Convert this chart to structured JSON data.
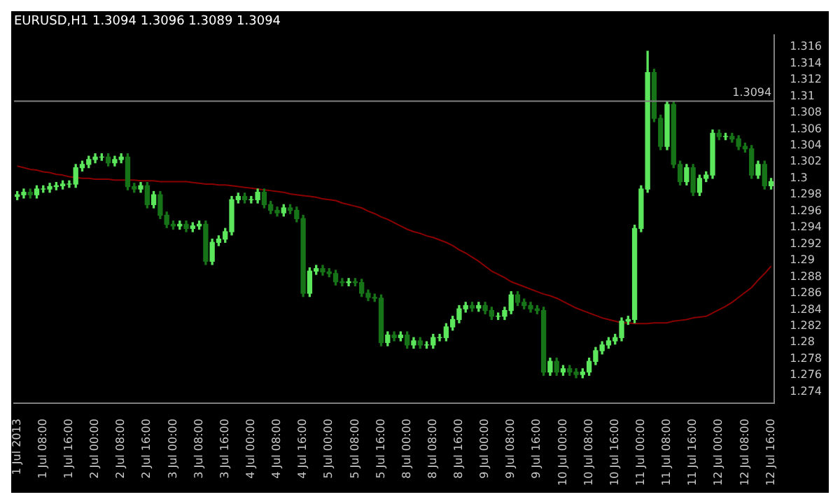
{
  "chart_data": {
    "type": "candlestick",
    "title": "EURUSD,H1 1.3094 1.3096 1.3089 1.3094",
    "categories": [
      "1 Jul 2013",
      null,
      null,
      null,
      "1 Jul 08:00",
      null,
      null,
      null,
      "1 Jul 16:00",
      null,
      null,
      null,
      "2 Jul 00:00",
      null,
      null,
      null,
      "2 Jul 08:00",
      null,
      null,
      null,
      "2 Jul 16:00",
      null,
      null,
      null,
      "3 Jul 00:00",
      null,
      null,
      null,
      "3 Jul 08:00",
      null,
      null,
      null,
      "3 Jul 16:00",
      null,
      null,
      null,
      "4 Jul 00:00",
      null,
      null,
      null,
      "4 Jul 08:00",
      null,
      null,
      null,
      "4 Jul 16:00",
      null,
      null,
      null,
      "5 Jul 00:00",
      null,
      null,
      null,
      "5 Jul 08:00",
      null,
      null,
      null,
      "5 Jul 16:00",
      null,
      null,
      null,
      "8 Jul 00:00",
      null,
      null,
      null,
      "8 Jul 08:00",
      null,
      null,
      null,
      "8 Jul 16:00",
      null,
      null,
      null,
      "9 Jul 00:00",
      null,
      null,
      null,
      "9 Jul 08:00",
      null,
      null,
      null,
      "9 Jul 16:00",
      null,
      null,
      null,
      "10 Jul 00:00",
      null,
      null,
      null,
      "10 Jul 08:00",
      null,
      null,
      null,
      "10 Jul 16:00",
      null,
      null,
      null,
      "11 Jul 00:00",
      null,
      null,
      null,
      "11 Jul 08:00",
      null,
      null,
      null,
      "11 Jul 16:00",
      null,
      null,
      null,
      "12 Jul 00:00",
      null,
      null,
      null,
      "12 Jul 08:00",
      null,
      null,
      null,
      "12 Jul 16:00"
    ],
    "ohlc": [
      [
        1.2978,
        1.2984,
        1.2974,
        1.298
      ],
      [
        1.298,
        1.2987,
        1.2976,
        1.2983
      ],
      [
        1.2983,
        1.2987,
        1.2976,
        1.298
      ],
      [
        1.298,
        1.2991,
        1.2976,
        1.2987
      ],
      [
        1.2987,
        1.2991,
        1.2983,
        1.2987
      ],
      [
        1.2987,
        1.2994,
        1.2983,
        1.299
      ],
      [
        1.299,
        1.2995,
        1.2986,
        1.2991
      ],
      [
        1.2991,
        1.2997,
        1.2987,
        1.2993
      ],
      [
        1.2993,
        1.2997,
        1.2989,
        1.2993
      ],
      [
        1.2993,
        1.3017,
        1.2989,
        1.3013
      ],
      [
        1.3013,
        1.3021,
        1.3009,
        1.3017
      ],
      [
        1.3017,
        1.3027,
        1.3013,
        1.3023
      ],
      [
        1.3023,
        1.303,
        1.3019,
        1.3026
      ],
      [
        1.3026,
        1.303,
        1.3022,
        1.3026
      ],
      [
        1.3026,
        1.303,
        1.3015,
        1.3019
      ],
      [
        1.3019,
        1.3027,
        1.3015,
        1.3023
      ],
      [
        1.3023,
        1.303,
        1.3019,
        1.3026
      ],
      [
        1.3026,
        1.303,
        1.2986,
        1.299
      ],
      [
        1.299,
        1.2994,
        1.2983,
        1.2987
      ],
      [
        1.2987,
        1.2995,
        1.2983,
        1.2991
      ],
      [
        1.2991,
        1.2995,
        1.2964,
        1.2968
      ],
      [
        1.2968,
        1.2984,
        1.2964,
        1.298
      ],
      [
        1.298,
        1.2984,
        1.2951,
        1.2955
      ],
      [
        1.2955,
        1.2959,
        1.294,
        1.2944
      ],
      [
        1.2944,
        1.2948,
        1.2938,
        1.2942
      ],
      [
        1.2942,
        1.2948,
        1.2938,
        1.2944
      ],
      [
        1.2944,
        1.2948,
        1.2935,
        1.2939
      ],
      [
        1.2939,
        1.2946,
        1.2935,
        1.2942
      ],
      [
        1.2942,
        1.2948,
        1.2938,
        1.2944
      ],
      [
        1.2944,
        1.2948,
        1.2895,
        1.2899
      ],
      [
        1.2899,
        1.2926,
        1.2895,
        1.2922
      ],
      [
        1.2922,
        1.293,
        1.2918,
        1.2926
      ],
      [
        1.2926,
        1.2939,
        1.2922,
        1.2935
      ],
      [
        1.2935,
        1.2978,
        1.2931,
        1.2974
      ],
      [
        1.2974,
        1.2982,
        1.297,
        1.2978
      ],
      [
        1.2978,
        1.2982,
        1.297,
        1.2974
      ],
      [
        1.2974,
        1.2978,
        1.297,
        1.2974
      ],
      [
        1.2974,
        1.2987,
        1.297,
        1.2983
      ],
      [
        1.2983,
        1.2987,
        1.2964,
        1.2968
      ],
      [
        1.2968,
        1.2972,
        1.2957,
        1.2961
      ],
      [
        1.2961,
        1.2965,
        1.2954,
        1.2958
      ],
      [
        1.2958,
        1.2968,
        1.2954,
        1.2964
      ],
      [
        1.2964,
        1.2968,
        1.2957,
        1.2961
      ],
      [
        1.2961,
        1.2965,
        1.2947,
        1.2951
      ],
      [
        1.2951,
        1.2955,
        1.2856,
        1.286
      ],
      [
        1.286,
        1.2891,
        1.2856,
        1.2887
      ],
      [
        1.2887,
        1.2894,
        1.2883,
        1.289
      ],
      [
        1.289,
        1.2894,
        1.2882,
        1.2886
      ],
      [
        1.2886,
        1.289,
        1.288,
        1.2884
      ],
      [
        1.2884,
        1.2888,
        1.287,
        1.2874
      ],
      [
        1.2874,
        1.2878,
        1.2869,
        1.2873
      ],
      [
        1.2873,
        1.2878,
        1.2869,
        1.2874
      ],
      [
        1.2874,
        1.2878,
        1.2869,
        1.2873
      ],
      [
        1.2873,
        1.2877,
        1.2856,
        1.286
      ],
      [
        1.286,
        1.2864,
        1.2851,
        1.2855
      ],
      [
        1.2855,
        1.2859,
        1.285,
        1.2854
      ],
      [
        1.2854,
        1.2858,
        1.2796,
        1.28
      ],
      [
        1.28,
        1.2813,
        1.2796,
        1.2809
      ],
      [
        1.2809,
        1.2813,
        1.2802,
        1.2806
      ],
      [
        1.2806,
        1.2813,
        1.2802,
        1.2809
      ],
      [
        1.2809,
        1.2813,
        1.2793,
        1.2797
      ],
      [
        1.2797,
        1.2806,
        1.2793,
        1.2802
      ],
      [
        1.2802,
        1.2806,
        1.2793,
        1.2797
      ],
      [
        1.2797,
        1.2801,
        1.2793,
        1.2797
      ],
      [
        1.2797,
        1.281,
        1.2793,
        1.2806
      ],
      [
        1.2806,
        1.281,
        1.2802,
        1.2806
      ],
      [
        1.2806,
        1.2823,
        1.2802,
        1.2819
      ],
      [
        1.2819,
        1.2832,
        1.2815,
        1.2828
      ],
      [
        1.2828,
        1.2845,
        1.2824,
        1.2841
      ],
      [
        1.2841,
        1.2849,
        1.2837,
        1.2845
      ],
      [
        1.2845,
        1.2849,
        1.2838,
        1.2842
      ],
      [
        1.2842,
        1.2849,
        1.2838,
        1.2845
      ],
      [
        1.2845,
        1.2849,
        1.2835,
        1.2839
      ],
      [
        1.2839,
        1.2843,
        1.2828,
        1.2832
      ],
      [
        1.2832,
        1.2836,
        1.2828,
        1.2832
      ],
      [
        1.2832,
        1.2843,
        1.2828,
        1.2839
      ],
      [
        1.2839,
        1.2862,
        1.2835,
        1.2858
      ],
      [
        1.2858,
        1.2862,
        1.2845,
        1.2849
      ],
      [
        1.2849,
        1.2853,
        1.2841,
        1.2845
      ],
      [
        1.2845,
        1.2849,
        1.2837,
        1.2841
      ],
      [
        1.2841,
        1.2845,
        1.2835,
        1.2839
      ],
      [
        1.2839,
        1.2843,
        1.276,
        1.2764
      ],
      [
        1.2764,
        1.2781,
        1.276,
        1.2777
      ],
      [
        1.2777,
        1.2781,
        1.276,
        1.2764
      ],
      [
        1.2764,
        1.2772,
        1.276,
        1.2768
      ],
      [
        1.2768,
        1.2772,
        1.276,
        1.2764
      ],
      [
        1.2764,
        1.2768,
        1.2757,
        1.2761
      ],
      [
        1.2761,
        1.2768,
        1.2757,
        1.2764
      ],
      [
        1.2764,
        1.2781,
        1.276,
        1.2777
      ],
      [
        1.2777,
        1.2794,
        1.2773,
        1.279
      ],
      [
        1.279,
        1.2801,
        1.2786,
        1.2797
      ],
      [
        1.2797,
        1.2806,
        1.2793,
        1.2802
      ],
      [
        1.2802,
        1.281,
        1.2798,
        1.2806
      ],
      [
        1.2806,
        1.283,
        1.2802,
        1.2826
      ],
      [
        1.2826,
        1.2832,
        1.2822,
        1.2828
      ],
      [
        1.2828,
        1.2943,
        1.2824,
        1.2939
      ],
      [
        1.2939,
        1.2991,
        1.2935,
        1.2987
      ],
      [
        1.2987,
        1.3155,
        1.2983,
        1.3129
      ],
      [
        1.3129,
        1.3133,
        1.3069,
        1.3073
      ],
      [
        1.3073,
        1.3077,
        1.3035,
        1.3039
      ],
      [
        1.3039,
        1.3094,
        1.3035,
        1.309
      ],
      [
        1.309,
        1.3094,
        1.3013,
        1.3017
      ],
      [
        1.3017,
        1.3021,
        1.2992,
        1.2996
      ],
      [
        1.2996,
        1.3017,
        1.2992,
        1.3013
      ],
      [
        1.3013,
        1.3017,
        1.2979,
        1.2983
      ],
      [
        1.2983,
        1.3004,
        1.2979,
        1.3
      ],
      [
        1.3,
        1.3008,
        1.2996,
        1.3004
      ],
      [
        1.3004,
        1.3059,
        1.3,
        1.3055
      ],
      [
        1.3055,
        1.3059,
        1.3047,
        1.3051
      ],
      [
        1.3051,
        1.3055,
        1.3047,
        1.3051
      ],
      [
        1.3051,
        1.3055,
        1.3044,
        1.3048
      ],
      [
        1.3048,
        1.3052,
        1.3035,
        1.3039
      ],
      [
        1.3039,
        1.3043,
        1.3032,
        1.3036
      ],
      [
        1.3036,
        1.304,
        1.3,
        1.3004
      ],
      [
        1.3004,
        1.3021,
        1.3,
        1.3017
      ],
      [
        1.3017,
        1.3021,
        1.2987,
        1.2991
      ],
      [
        1.2991,
        1.3,
        1.2987,
        1.2996
      ]
    ],
    "colors": [
      "#5ce65c",
      "#5ce65c",
      "#177317",
      "#5ce65c",
      "#5ce65c",
      "#5ce65c",
      "#5ce65c",
      "#5ce65c",
      "#5ce65c",
      "#5ce65c",
      "#5ce65c",
      "#5ce65c",
      "#5ce65c",
      "#5ce65c",
      "#177317",
      "#5ce65c",
      "#5ce65c",
      "#177317",
      "#177317",
      "#5ce65c",
      "#177317",
      "#5ce65c",
      "#177317",
      "#177317",
      "#177317",
      "#5ce65c",
      "#177317",
      "#5ce65c",
      "#5ce65c",
      "#177317",
      "#5ce65c",
      "#5ce65c",
      "#5ce65c",
      "#5ce65c",
      "#5ce65c",
      "#177317",
      "#5ce65c",
      "#5ce65c",
      "#177317",
      "#177317",
      "#177317",
      "#5ce65c",
      "#177317",
      "#177317",
      "#177317",
      "#5ce65c",
      "#5ce65c",
      "#177317",
      "#177317",
      "#177317",
      "#177317",
      "#5ce65c",
      "#177317",
      "#177317",
      "#177317",
      "#177317",
      "#177317",
      "#5ce65c",
      "#177317",
      "#5ce65c",
      "#177317",
      "#5ce65c",
      "#177317",
      "#5ce65c",
      "#5ce65c",
      "#5ce65c",
      "#5ce65c",
      "#5ce65c",
      "#5ce65c",
      "#5ce65c",
      "#177317",
      "#5ce65c",
      "#177317",
      "#177317",
      "#5ce65c",
      "#5ce65c",
      "#5ce65c",
      "#177317",
      "#177317",
      "#177317",
      "#177317",
      "#177317",
      "#5ce65c",
      "#177317",
      "#5ce65c",
      "#177317",
      "#177317",
      "#5ce65c",
      "#5ce65c",
      "#5ce65c",
      "#5ce65c",
      "#5ce65c",
      "#5ce65c",
      "#5ce65c",
      "#5ce65c",
      "#5ce65c",
      "#5ce65c",
      "#5ce65c",
      "#177317",
      "#177317",
      "#5ce65c",
      "#177317",
      "#177317",
      "#5ce65c",
      "#177317",
      "#5ce65c",
      "#5ce65c",
      "#5ce65c",
      "#177317",
      "#5ce65c",
      "#177317",
      "#177317",
      "#177317",
      "#177317",
      "#5ce65c",
      "#177317",
      "#5ce65c"
    ],
    "series": [
      {
        "type": "line",
        "color": "#8b0000",
        "values": [
          1.3015,
          1.3013,
          1.3011,
          1.301,
          1.3008,
          1.3007,
          1.3005,
          1.3004,
          1.3002,
          1.3001,
          1.3,
          1.3,
          1.2999,
          1.2999,
          1.2999,
          1.2998,
          1.2998,
          1.2998,
          1.2998,
          1.2997,
          1.2997,
          1.2997,
          1.2996,
          1.2996,
          1.2996,
          1.2996,
          1.2996,
          1.2995,
          1.2994,
          1.2993,
          1.2993,
          1.2992,
          1.2992,
          1.2991,
          1.299,
          1.2989,
          1.2988,
          1.2987,
          1.2986,
          1.2985,
          1.2984,
          1.2983,
          1.2981,
          1.298,
          1.2979,
          1.2978,
          1.2977,
          1.2975,
          1.2974,
          1.2973,
          1.297,
          1.2968,
          1.2966,
          1.2964,
          1.296,
          1.2957,
          1.2953,
          1.295,
          1.2946,
          1.2942,
          1.2938,
          1.2935,
          1.2933,
          1.293,
          1.2928,
          1.2925,
          1.2922,
          1.2918,
          1.2913,
          1.2909,
          1.2904,
          1.2899,
          1.2893,
          1.2887,
          1.2883,
          1.2879,
          1.2874,
          1.2871,
          1.2868,
          1.2865,
          1.2862,
          1.2859,
          1.2857,
          1.2854,
          1.285,
          1.2846,
          1.2842,
          1.2839,
          1.2836,
          1.2833,
          1.283,
          1.2828,
          1.2826,
          1.2824,
          1.2824,
          1.2823,
          1.2823,
          1.2823,
          1.2824,
          1.2824,
          1.2824,
          1.2826,
          1.2827,
          1.2828,
          1.283,
          1.2831,
          1.2832,
          1.2836,
          1.284,
          1.2844,
          1.2849,
          1.2855,
          1.2861,
          1.2867,
          1.2876,
          1.2884,
          1.2893
        ]
      }
    ],
    "ylim": [
      1.2726,
      1.3175
    ],
    "yticks": [
      1.274,
      1.276,
      1.278,
      1.28,
      1.282,
      1.284,
      1.286,
      1.288,
      1.29,
      1.292,
      1.294,
      1.296,
      1.298,
      1.3,
      1.302,
      1.304,
      1.306,
      1.308,
      1.31,
      1.312,
      1.314,
      1.316
    ],
    "ref_lines": [
      {
        "axis": "y",
        "value": 1.3094,
        "label": "1.3094",
        "color": "#808080"
      }
    ],
    "grid": false,
    "legend": false
  }
}
